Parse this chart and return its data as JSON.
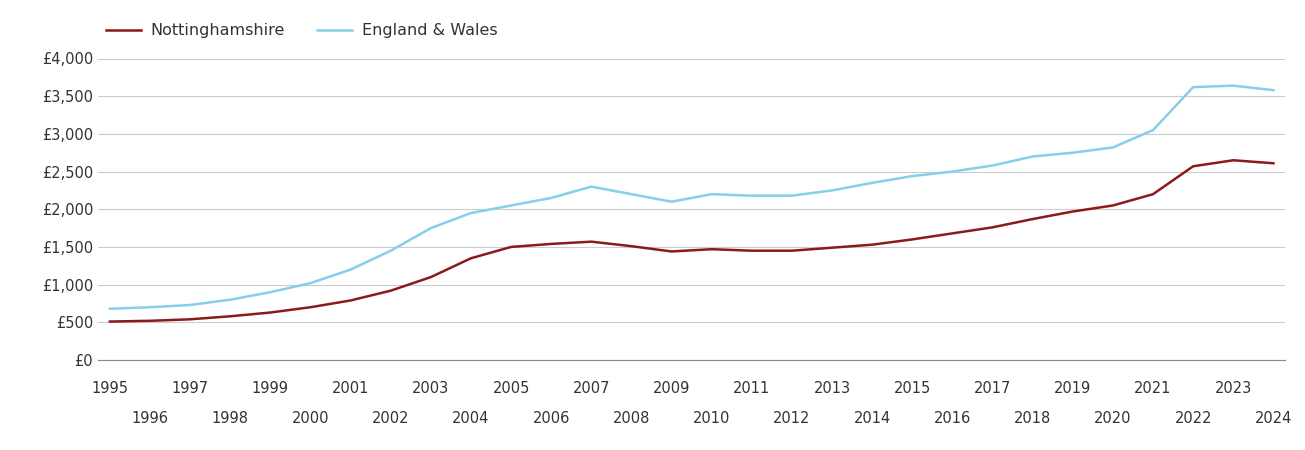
{
  "years": [
    1995,
    1996,
    1997,
    1998,
    1999,
    2000,
    2001,
    2002,
    2003,
    2004,
    2005,
    2006,
    2007,
    2008,
    2009,
    2010,
    2011,
    2012,
    2013,
    2014,
    2015,
    2016,
    2017,
    2018,
    2019,
    2020,
    2021,
    2022,
    2023,
    2024
  ],
  "nottinghamshire": [
    510,
    520,
    540,
    580,
    630,
    700,
    790,
    920,
    1100,
    1350,
    1500,
    1540,
    1570,
    1510,
    1440,
    1470,
    1450,
    1450,
    1490,
    1530,
    1600,
    1680,
    1760,
    1870,
    1970,
    2050,
    2200,
    2570,
    2650,
    2610
  ],
  "england_wales": [
    680,
    700,
    730,
    800,
    900,
    1020,
    1200,
    1450,
    1750,
    1950,
    2050,
    2150,
    2300,
    2200,
    2100,
    2200,
    2180,
    2180,
    2250,
    2350,
    2440,
    2500,
    2580,
    2700,
    2750,
    2820,
    3050,
    3620,
    3640,
    3580
  ],
  "nottinghamshire_color": "#8B1A1A",
  "england_wales_color": "#87CEEB",
  "nottinghamshire_label": "Nottinghamshire",
  "england_wales_label": "England & Wales",
  "ylim": [
    0,
    4000
  ],
  "yticks": [
    0,
    500,
    1000,
    1500,
    2000,
    2500,
    3000,
    3500,
    4000
  ],
  "ytick_labels": [
    "£0",
    "£500",
    "£1,000",
    "£1,500",
    "£2,000",
    "£2,500",
    "£3,000",
    "£3,500",
    "£4,000"
  ],
  "background_color": "#ffffff",
  "grid_color": "#cccccc",
  "line_width": 1.8,
  "legend_fontsize": 11.5,
  "tick_fontsize": 10.5
}
